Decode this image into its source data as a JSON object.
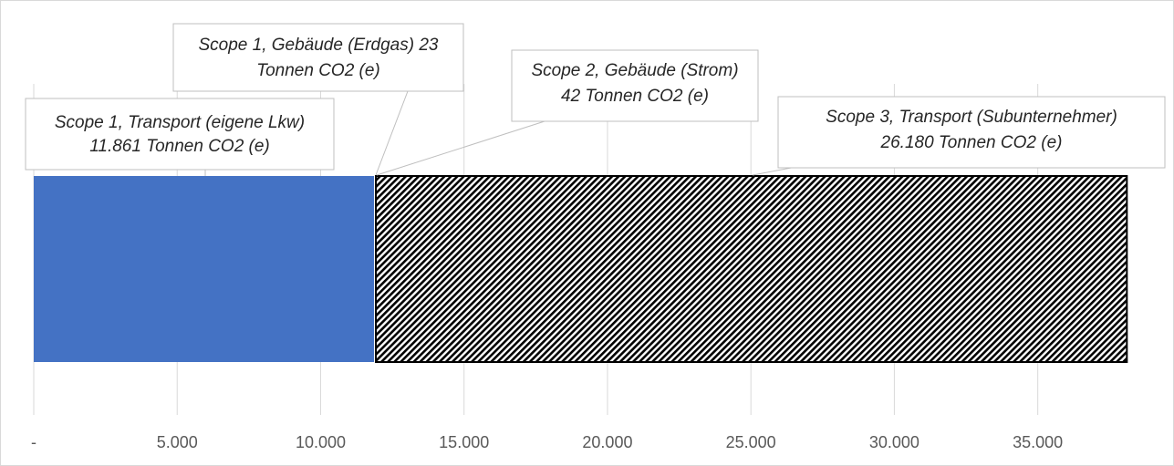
{
  "chart_data": {
    "type": "bar",
    "orientation": "horizontal",
    "stacked": true,
    "xlim": [
      0,
      38000
    ],
    "x_ticks": [
      0,
      5000,
      10000,
      15000,
      20000,
      25000,
      30000,
      35000
    ],
    "x_tick_labels": [
      "-",
      "5.000",
      "10.000",
      "15.000",
      "20.000",
      "25.000",
      "30.000",
      "35.000"
    ],
    "grid": "vertical",
    "series": [
      {
        "value": 11861,
        "fill": "#4472C4",
        "pattern": "solid",
        "label": [
          "Scope 1, Transport (eigene Lkw)",
          "11.861 Tonnen CO2 (e)"
        ]
      },
      {
        "value": 23,
        "fill": "#ffffff",
        "pattern": "none",
        "label": [
          "Scope 1, Gebäude (Erdgas)  23",
          "Tonnen CO2 (e)"
        ]
      },
      {
        "value": 42,
        "fill": "#ffffff",
        "pattern": "none",
        "label": [
          "Scope 2, Gebäude (Strom)",
          "42 Tonnen CO2 (e)"
        ]
      },
      {
        "value": 26180,
        "fill": "#000000",
        "pattern": "diagonal-stripes",
        "label": [
          "Scope 3, Transport (Subunternehmer)",
          "26.180 Tonnen CO2 (e)"
        ]
      }
    ]
  },
  "colors": {
    "accent": "#4472C4",
    "gridline": "#d9d9d9",
    "callout_border": "#bfbfbf",
    "text": "#262626",
    "axis_text": "#595959"
  }
}
